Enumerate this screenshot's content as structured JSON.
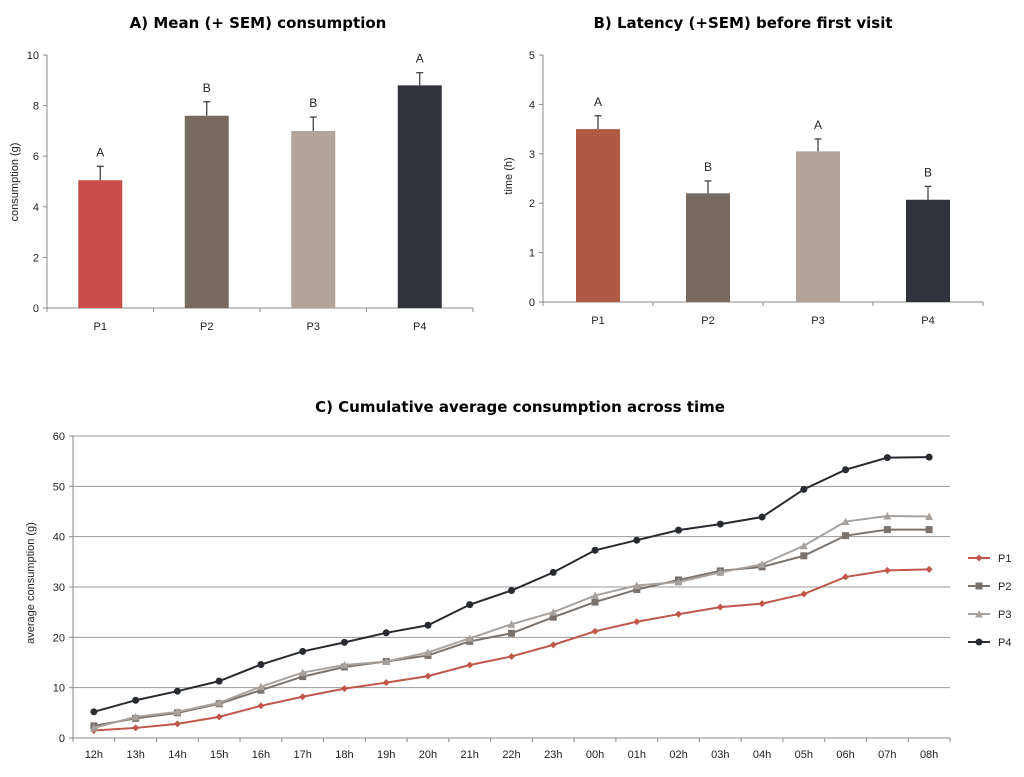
{
  "chart_data": [
    {
      "id": "A",
      "type": "bar",
      "title": "A) Mean (+ SEM) consumption",
      "xlabel": "",
      "ylabel": "consumption (g)",
      "ylim": [
        0,
        10
      ],
      "yticks": [
        0,
        2,
        4,
        6,
        8,
        10
      ],
      "categories": [
        "P1",
        "P2",
        "P3",
        "P4"
      ],
      "values": [
        5.05,
        7.6,
        7.0,
        8.8
      ],
      "errors": [
        0.55,
        0.55,
        0.55,
        0.5
      ],
      "letters": [
        "A",
        "B",
        "B",
        "A"
      ],
      "colors": [
        "#c94e4b",
        "#776a60",
        "#b0a49b",
        "#30343a"
      ],
      "grid": false
    },
    {
      "id": "B",
      "type": "bar",
      "title": "B) Latency (+SEM) before first visit",
      "xlabel": "",
      "ylabel": "time (h)",
      "ylim": [
        0,
        5
      ],
      "yticks": [
        0,
        1,
        2,
        3,
        4,
        5
      ],
      "categories": [
        "P1",
        "P2",
        "P3",
        "P4"
      ],
      "values": [
        3.5,
        2.2,
        3.05,
        2.07
      ],
      "errors": [
        0.27,
        0.25,
        0.25,
        0.27
      ],
      "letters": [
        "A",
        "B",
        "A",
        "B"
      ],
      "colors": [
        "#b05a45",
        "#776a60",
        "#b0a49b",
        "#30343a"
      ],
      "grid": false
    },
    {
      "id": "C",
      "type": "line",
      "title": "C) Cumulative average consumption across time",
      "xlabel": "",
      "ylabel": "average consumption (g)",
      "ylim": [
        0,
        60
      ],
      "yticks": [
        0,
        10,
        20,
        30,
        40,
        50,
        60
      ],
      "grid": true,
      "legend": "right",
      "x": [
        "12h",
        "13h",
        "14h",
        "15h",
        "16h",
        "17h",
        "18h",
        "19h",
        "20h",
        "21h",
        "22h",
        "23h",
        "00h",
        "01h",
        "02h",
        "03h",
        "04h",
        "05h",
        "06h",
        "07h",
        "08h"
      ],
      "series": [
        {
          "name": "P1",
          "color": "#c0574a",
          "marker": "diamond",
          "values": [
            1.5,
            2.0,
            2.8,
            4.2,
            6.4,
            8.2,
            9.8,
            11.0,
            12.3,
            14.5,
            16.2,
            18.5,
            21.2,
            23.1,
            24.6,
            26.0,
            26.7,
            28.6,
            32.0,
            33.3,
            33.5
          ]
        },
        {
          "name": "P2",
          "color": "#7a726c",
          "marker": "square",
          "values": [
            2.4,
            3.9,
            5.0,
            6.8,
            9.5,
            12.2,
            14.1,
            15.2,
            16.4,
            19.2,
            20.8,
            24.0,
            27.0,
            29.5,
            31.4,
            33.2,
            34.0,
            36.2,
            40.2,
            41.4,
            41.4
          ]
        },
        {
          "name": "P3",
          "color": "#a8a29e",
          "marker": "triangle",
          "values": [
            2.0,
            4.2,
            5.2,
            7.0,
            10.2,
            13.0,
            14.5,
            15.2,
            17.0,
            19.8,
            22.6,
            25.0,
            28.3,
            30.3,
            31.0,
            32.9,
            34.5,
            38.2,
            43.0,
            44.1,
            44.0
          ]
        },
        {
          "name": "P4",
          "color": "#272b30",
          "marker": "circle",
          "values": [
            5.2,
            7.5,
            9.3,
            11.3,
            14.6,
            17.2,
            19.0,
            20.9,
            22.4,
            26.5,
            29.3,
            32.9,
            37.3,
            39.3,
            41.3,
            42.5,
            43.9,
            49.4,
            53.3,
            55.7,
            55.8
          ]
        }
      ]
    }
  ]
}
